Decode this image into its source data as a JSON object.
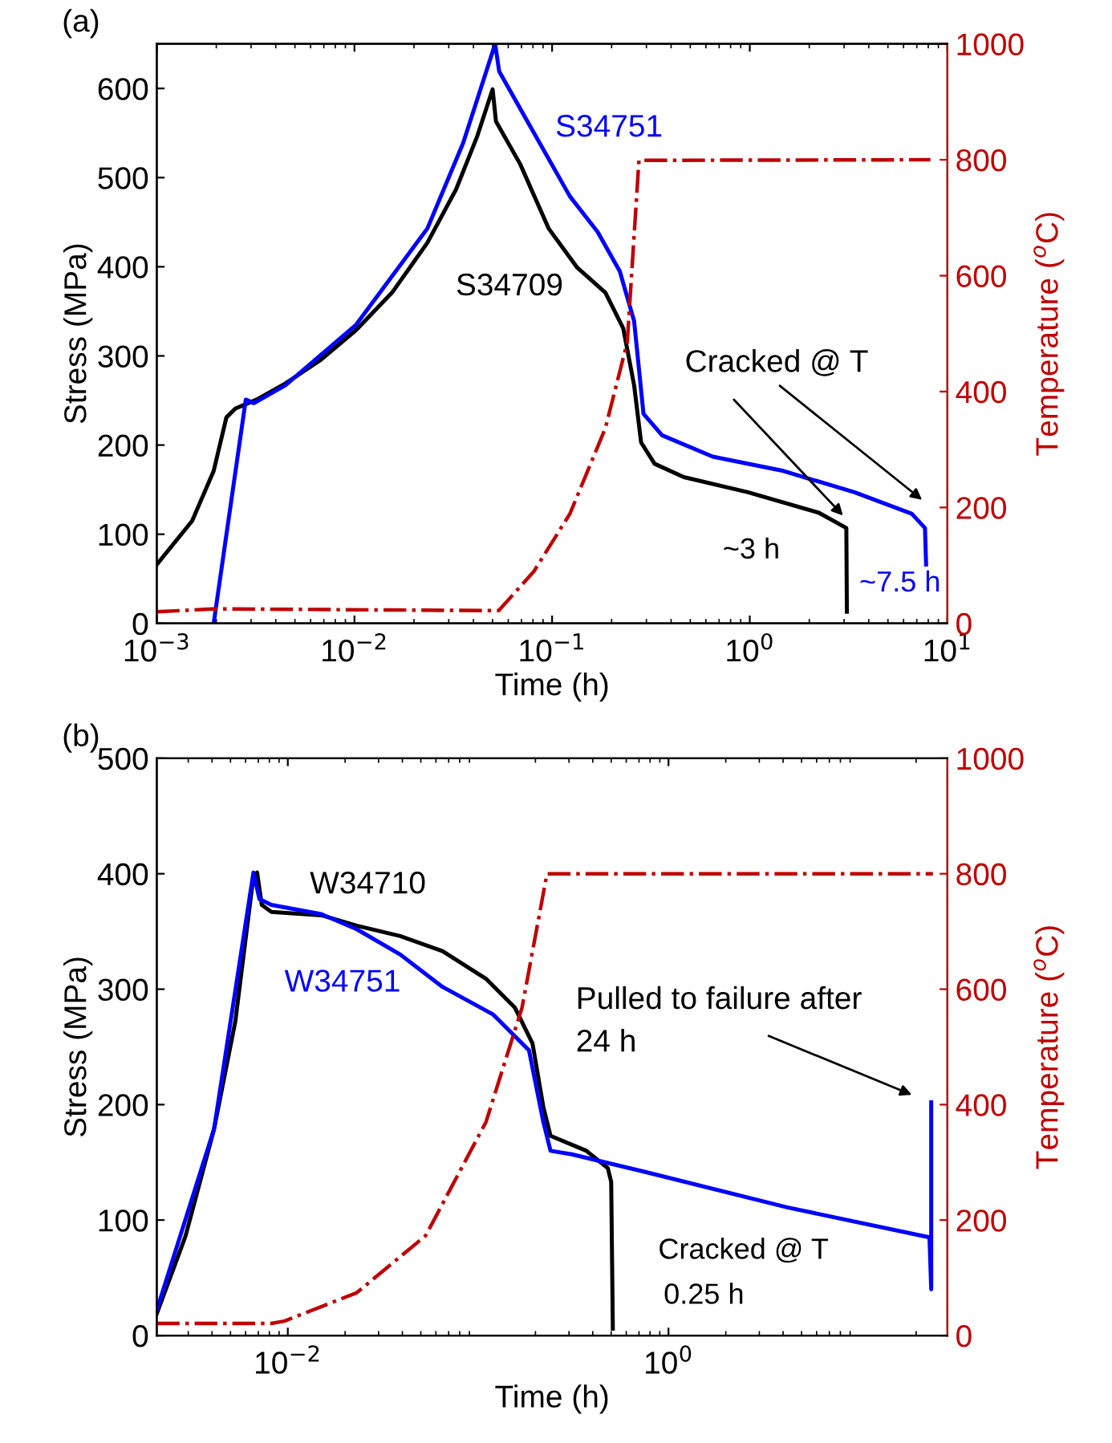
{
  "chart_data": [
    {
      "type": "line",
      "title": "(a)",
      "xlabel": "Time (h)",
      "ylabel": "Stress (MPa)",
      "y2label": "Temperature ($^{o}$C)",
      "log": "x",
      "xlim": [
        0.001,
        10
      ],
      "xticks": [
        {
          "value": 0.001,
          "label": "10$^{−3}$"
        },
        {
          "value": 0.01,
          "label": "10$^{−2}$"
        },
        {
          "value": 0.1,
          "label": "10$^{−1}$"
        },
        {
          "value": 1,
          "label": "10$^{0}$"
        },
        {
          "value": 10,
          "label": "10$^{1}$"
        }
      ],
      "ylim": [
        0,
        650
      ],
      "yticks": [
        0,
        100,
        200,
        300,
        400,
        500,
        600
      ],
      "y2lim": [
        0,
        1000
      ],
      "y2ticks": [
        0,
        200,
        400,
        600,
        800,
        1000
      ],
      "grid": false,
      "legend": false,
      "series": [
        {
          "name": "S34709",
          "color": "#000000",
          "line_style": "solid",
          "x": [
            0.001,
            0.00151,
            0.00194,
            0.00225,
            0.0025,
            0.0032,
            0.00447,
            0.0067,
            0.0102,
            0.0155,
            0.0234,
            0.0327,
            0.0419,
            0.05,
            0.052,
            0.069,
            0.096,
            0.134,
            0.186,
            0.229,
            0.26,
            0.282,
            0.33,
            0.464,
            0.98,
            2.24,
            3.08,
            3.1
          ],
          "values": [
            66,
            115,
            171,
            231,
            241,
            251,
            269,
            295,
            329,
            371,
            427,
            487,
            547,
            599,
            563,
            515,
            443,
            399,
            371,
            331,
            267,
            203,
            179,
            164,
            147,
            124,
            107,
            13
          ]
        },
        {
          "name": "S34751",
          "color": "#0000ff",
          "line_style": "solid",
          "x": [
            0.00194,
            0.00282,
            0.0031,
            0.00447,
            0.0102,
            0.0234,
            0.0355,
            0.0515,
            0.054,
            0.075,
            0.123,
            0.17,
            0.22,
            0.26,
            0.29,
            0.36,
            0.65,
            1.48,
            3.39,
            6.6,
            7.7,
            7.8
          ],
          "values": [
            0,
            251,
            247,
            267,
            335,
            443,
            539,
            650,
            619,
            563,
            479,
            439,
            395,
            339,
            235,
            211,
            187,
            171,
            147,
            123,
            107,
            66
          ]
        },
        {
          "color": "#c00000",
          "axis": "y2",
          "line_style": "dashdot",
          "x": [
            0.001,
            0.00194,
            0.0537,
            0.081,
            0.123,
            0.186,
            0.24,
            0.275,
            8.2
          ],
          "values": [
            20,
            25,
            22,
            90,
            189,
            337,
            485,
            799,
            800
          ]
        }
      ],
      "annotations": [
        "Cracked @ T",
        "~3 h",
        "~7.5 h"
      ]
    },
    {
      "type": "line",
      "title": "(b)",
      "xlabel": "Time (h)",
      "ylabel": "Stress (MPa)",
      "y2label": "Temperature ($^{o}$C)",
      "log": "x",
      "xlim": [
        0.00205,
        29.2
      ],
      "xticks": [
        {
          "value": 0.01,
          "label": "10$^{−2}$"
        },
        {
          "value": 1,
          "label": "10$^{0}$"
        }
      ],
      "ylim": [
        0,
        500
      ],
      "yticks": [
        0,
        100,
        200,
        300,
        400,
        500
      ],
      "y2lim": [
        0,
        1000
      ],
      "y2ticks": [
        0,
        200,
        400,
        600,
        800,
        1000
      ],
      "grid": false,
      "legend": false,
      "series": [
        {
          "name": "W34710",
          "color": "#000000",
          "line_style": "solid",
          "x": [
            0.00205,
            0.0029,
            0.0041,
            0.0053,
            0.0066,
            0.0069,
            0.0073,
            0.0082,
            0.015,
            0.023,
            0.039,
            0.065,
            0.11,
            0.156,
            0.193,
            0.22,
            0.24,
            0.37,
            0.48,
            0.5,
            0.51
          ],
          "values": [
            19,
            86,
            179,
            272,
            398,
            401,
            373,
            367,
            364,
            355,
            346,
            333,
            309,
            284,
            253,
            198,
            173,
            160,
            145,
            133,
            6
          ]
        },
        {
          "name": "W34751",
          "color": "#0000ff",
          "line_style": "solid",
          "x": [
            0.00205,
            0.0041,
            0.0066,
            0.0071,
            0.0082,
            0.015,
            0.023,
            0.039,
            0.065,
            0.12,
            0.185,
            0.22,
            0.24,
            0.31,
            0.74,
            4.2,
            23.5,
            24,
            24
          ],
          "values": [
            22,
            179,
            401,
            378,
            373,
            365,
            352,
            330,
            302,
            278,
            247,
            185,
            160,
            157,
            142,
            111,
            85,
            40,
            202
          ]
        },
        {
          "color": "#c00000",
          "axis": "y2",
          "line_style": "dashdot",
          "x": [
            0.00205,
            0.0082,
            0.0096,
            0.023,
            0.053,
            0.11,
            0.17,
            0.23,
            24.5
          ],
          "values": [
            21,
            21,
            25,
            74,
            173,
            370,
            568,
            800,
            800
          ]
        }
      ],
      "annotations": [
        "Pulled to failure after\n24 h",
        "Cracked @ T",
        "0.25 h"
      ]
    }
  ]
}
